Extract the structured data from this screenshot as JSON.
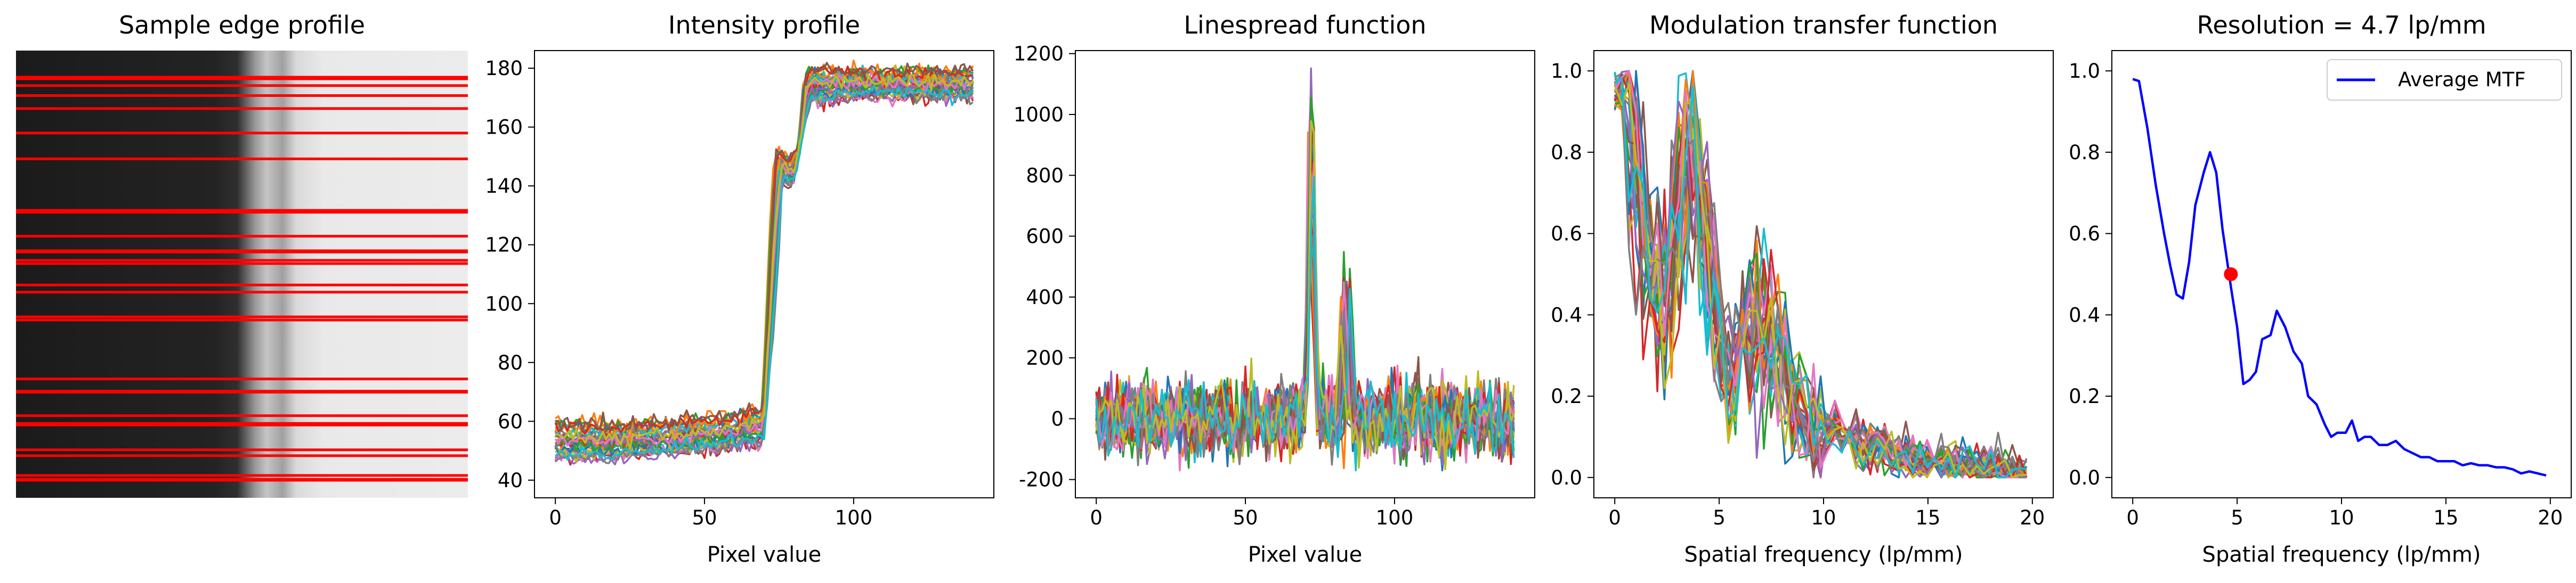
{
  "chart_data": [
    {
      "type": "image",
      "title": "Sample edge profile",
      "content": "grayscale edge image (dark left, light right) with red horizontal sampling lines",
      "colors": {
        "line": "#ff0000"
      }
    },
    {
      "type": "line",
      "title": "Intensity profile",
      "xlabel": "Pixel value",
      "ylabel": "",
      "xlim": [
        -7,
        147
      ],
      "ylim": [
        34,
        186
      ],
      "xticks": [
        0,
        50,
        100
      ],
      "yticks": [
        40,
        60,
        80,
        100,
        120,
        140,
        160,
        180
      ],
      "series_count": 30,
      "envelope": {
        "x": [
          0,
          20,
          40,
          60,
          70,
          74,
          76,
          78,
          80,
          82,
          84,
          86,
          90,
          100,
          120,
          140
        ],
        "low": [
          47,
          47,
          49,
          51,
          52,
          95,
          140,
          141,
          139,
          150,
          160,
          169,
          168,
          170,
          170,
          170
        ],
        "mid": [
          54,
          54,
          54,
          56,
          58,
          125,
          147,
          145,
          143,
          150,
          172,
          176,
          174,
          174,
          174,
          174
        ],
        "high": [
          60,
          59,
          60,
          62,
          64,
          152,
          152,
          150,
          150,
          152,
          178,
          180,
          180,
          179,
          179,
          179
        ]
      }
    },
    {
      "type": "line",
      "title": "Linespread function",
      "xlabel": "Pixel value",
      "ylabel": "",
      "xlim": [
        -7,
        147
      ],
      "ylim": [
        -260,
        1210
      ],
      "xticks": [
        0,
        50,
        100
      ],
      "yticks": [
        -200,
        0,
        200,
        400,
        600,
        800,
        1000,
        1200
      ],
      "series_count": 30,
      "peaks": [
        {
          "x": 72,
          "height": [
            550,
            1150
          ],
          "width": 1.3
        },
        {
          "x": 84,
          "height": [
            300,
            540
          ],
          "width": 1.2
        }
      ],
      "noise_range": [
        -170,
        170
      ]
    },
    {
      "type": "line",
      "title": "Modulation transfer function",
      "xlabel": "Spatial frequency (lp/mm)",
      "ylabel": "",
      "xlim": [
        -1,
        21
      ],
      "ylim": [
        -0.05,
        1.05
      ],
      "xticks": [
        0,
        5,
        10,
        15,
        20
      ],
      "yticks": [
        0.0,
        0.2,
        0.4,
        0.6,
        0.8,
        1.0
      ],
      "series_count": 30
    },
    {
      "type": "line",
      "title": "Resolution = 4.7 lp/mm",
      "xlabel": "Spatial frequency (lp/mm)",
      "ylabel": "",
      "xlim": [
        -1,
        21
      ],
      "ylim": [
        -0.05,
        1.05
      ],
      "xticks": [
        0,
        5,
        10,
        15,
        20
      ],
      "yticks": [
        0.0,
        0.2,
        0.4,
        0.6,
        0.8,
        1.0
      ],
      "legend": {
        "placement": "top-right",
        "entries": [
          "Average MTF"
        ]
      },
      "series": [
        {
          "name": "Average MTF",
          "color": "#0000ff",
          "x": [
            0,
            0.3,
            0.7,
            1.1,
            1.5,
            1.8,
            2.1,
            2.4,
            2.7,
            3.0,
            3.4,
            3.7,
            4.0,
            4.3,
            4.7,
            5.0,
            5.3,
            5.6,
            5.9,
            6.2,
            6.6,
            6.9,
            7.3,
            7.7,
            8.1,
            8.4,
            8.8,
            9.2,
            9.5,
            9.8,
            10.2,
            10.5,
            10.8,
            11.1,
            11.4,
            11.8,
            12.2,
            12.6,
            13.0,
            13.4,
            13.8,
            14.2,
            14.6,
            15.0,
            15.4,
            15.8,
            16.2,
            16.6,
            17.0,
            17.4,
            17.8,
            18.2,
            18.6,
            19.0,
            19.4,
            19.8
          ],
          "y": [
            0.98,
            0.975,
            0.86,
            0.72,
            0.6,
            0.52,
            0.45,
            0.44,
            0.53,
            0.67,
            0.75,
            0.8,
            0.75,
            0.61,
            0.47,
            0.37,
            0.23,
            0.24,
            0.26,
            0.34,
            0.35,
            0.41,
            0.37,
            0.31,
            0.28,
            0.2,
            0.18,
            0.13,
            0.1,
            0.11,
            0.11,
            0.14,
            0.09,
            0.1,
            0.1,
            0.08,
            0.08,
            0.09,
            0.07,
            0.06,
            0.05,
            0.05,
            0.04,
            0.04,
            0.04,
            0.03,
            0.035,
            0.03,
            0.03,
            0.025,
            0.025,
            0.02,
            0.01,
            0.015,
            0.01,
            0.005
          ]
        }
      ],
      "marker": {
        "x": 4.7,
        "y": 0.5,
        "color": "#ff0000"
      }
    }
  ]
}
